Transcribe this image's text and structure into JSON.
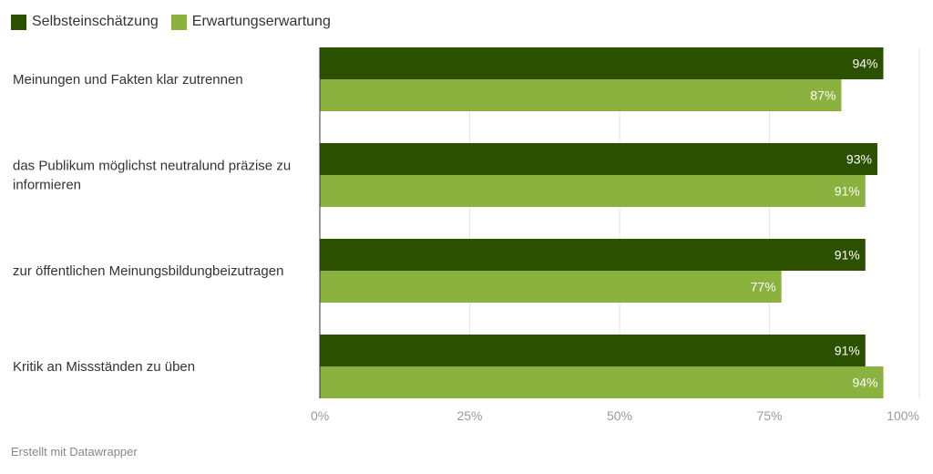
{
  "chart_data": {
    "type": "bar",
    "orientation": "horizontal",
    "categories": [
      "Meinungen und Fakten klar zutrennen",
      "das Publikum möglichst neutralund präzise zu informieren",
      "zur öffentlichen Meinungsbildungbeizutragen",
      "Kritik an Missständen zu üben"
    ],
    "series": [
      {
        "name": "Selbsteinschätzung",
        "color": "#2b5000",
        "values": [
          94,
          93,
          91,
          91
        ]
      },
      {
        "name": "Erwartungserwartung",
        "color": "#8bb13f",
        "values": [
          87,
          91,
          77,
          94
        ]
      }
    ],
    "value_format": "{v}%",
    "xlim": [
      0,
      100
    ],
    "ticks": [
      0,
      25,
      50,
      75,
      100
    ],
    "tick_labels": [
      "0%",
      "25%",
      "50%",
      "75%",
      "100%"
    ],
    "grid": true,
    "legend_position": "top-left"
  },
  "footer": {
    "credit": "Erstellt mit Datawrapper"
  }
}
